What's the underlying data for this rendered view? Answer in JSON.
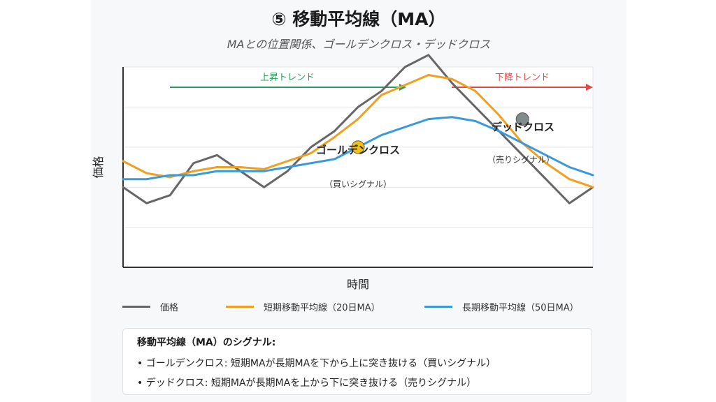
{
  "title": "⑤ 移動平均線（MA）",
  "subtitle": "MAとの位置関係、ゴールデンクロス・デッドクロス",
  "colors": {
    "price": "#666666",
    "ma20": "#f0a020",
    "ma50": "#3a9ad9",
    "up": "#2a9d5c",
    "down": "#e04848",
    "golden": "#f2c314",
    "dead": "#7f8c8d"
  },
  "chart_data": {
    "type": "line",
    "title": "⑤ 移動平均線（MA）",
    "xlabel": "時間",
    "ylabel": "価格",
    "ylim": [
      0,
      100
    ],
    "grid": true,
    "legend_position": "bottom",
    "x": [
      0,
      1,
      2,
      3,
      4,
      5,
      6,
      7,
      8,
      9,
      10,
      11,
      12,
      13,
      14,
      15,
      16,
      17,
      18,
      19,
      20
    ],
    "series": [
      {
        "name": "価格",
        "color": "#666666",
        "values": [
          40,
          32,
          36,
          52,
          56,
          48,
          40,
          48,
          60,
          68,
          80,
          88,
          100,
          106,
          92,
          80,
          68,
          56,
          44,
          32,
          40
        ]
      },
      {
        "name": "短期移動平均線（20日MA）",
        "color": "#f0a020",
        "values": [
          53,
          47,
          45,
          48,
          50,
          50,
          49,
          53,
          57,
          65,
          74,
          86,
          91,
          96,
          94,
          88,
          76,
          62,
          52,
          44,
          40
        ]
      },
      {
        "name": "長期移動平均線（50日MA）",
        "color": "#3a9ad9",
        "values": [
          44,
          44,
          46,
          46,
          48,
          48,
          48,
          50,
          52,
          54,
          60,
          66,
          70,
          74,
          75,
          73,
          68,
          62,
          56,
          50,
          46
        ]
      }
    ],
    "annotations": {
      "uptrend_label": "上昇トレンド",
      "downtrend_label": "下降トレンド",
      "golden_cross": {
        "label": "ゴールデンクロス",
        "signal": "（買いシグナル）",
        "x": 10.0,
        "y": 60
      },
      "dead_cross": {
        "label": "デッドクロス",
        "signal": "（売りシグナル）",
        "x": 17.0,
        "y": 74
      }
    }
  },
  "legend": {
    "price": "価格",
    "ma20": "短期移動平均線（20日MA）",
    "ma50": "長期移動平均線（50日MA）"
  },
  "signals": {
    "title": "移動平均線（MA）のシグナル:",
    "golden": "• ゴールデンクロス: 短期MAが長期MAを下から上に突き抜ける（買いシグナル）",
    "dead": "• デッドクロス: 短期MAが長期MAを上から下に突き抜ける（売りシグナル）"
  }
}
